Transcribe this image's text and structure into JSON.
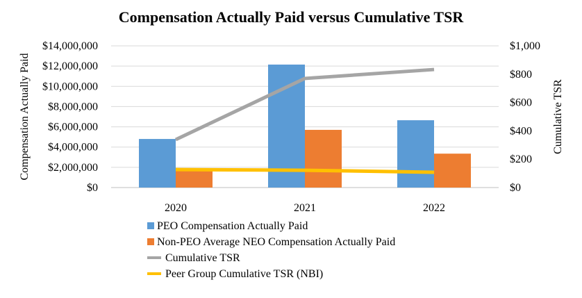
{
  "chart_data": {
    "type": "bar",
    "title": "Compensation Actually Paid versus Cumulative TSR",
    "ylabel": "Compensation Actually Paid",
    "y2label": "Cumulative TSR",
    "categories": [
      "2020",
      "2021",
      "2022"
    ],
    "ylim": [
      0,
      14000000
    ],
    "y2lim": [
      0,
      1000
    ],
    "yticks": [
      "$0",
      "$2,000,000",
      "$4,000,000",
      "$6,000,000",
      "$8,000,000",
      "$10,000,000",
      "$12,000,000",
      "$14,000,000"
    ],
    "y2ticks": [
      "$0",
      "$200",
      "$400",
      "$600",
      "$800",
      "$1,000"
    ],
    "grid": true,
    "legend_position": "bottom",
    "series": [
      {
        "name": "PEO Compensation Actually Paid",
        "type": "bar",
        "axis": "left",
        "color": "#5b9bd5",
        "values": [
          4800000,
          12150000,
          6650000
        ]
      },
      {
        "name": "Non-PEO Average NEO Compensation Actually Paid",
        "type": "bar",
        "axis": "left",
        "color": "#ed7d31",
        "values": [
          1900000,
          5700000,
          3350000
        ]
      },
      {
        "name": "Cumulative TSR",
        "type": "line",
        "axis": "right",
        "color": "#a5a5a5",
        "values": [
          338,
          770,
          833
        ]
      },
      {
        "name": "Peer Group Cumulative TSR (NBI)",
        "type": "line",
        "axis": "right",
        "color": "#ffc000",
        "values": [
          127,
          122,
          108
        ]
      }
    ]
  }
}
